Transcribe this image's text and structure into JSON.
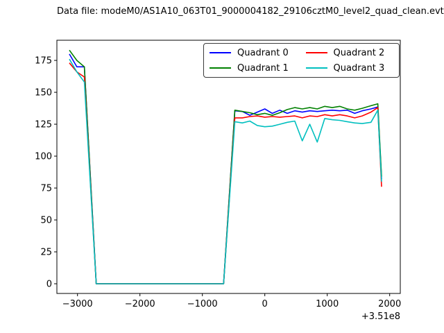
{
  "chart_data": {
    "type": "line",
    "title": "Data file: modeM0/AS1A10_063T01_9000004182_29106cztM0_level2_quad_clean.evt",
    "xlabel": "",
    "ylabel": "",
    "x_offset_label": "+3.51e8",
    "xlim": [
      -3330,
      2170
    ],
    "ylim": [
      -7.6,
      190.8
    ],
    "grid": false,
    "legend_position": "upper right",
    "xticks": {
      "values": [
        -3000,
        -2000,
        -1000,
        0,
        1000,
        2000
      ],
      "labels": [
        "−3000",
        "−2000",
        "−1000",
        "0",
        "1000",
        "2000"
      ]
    },
    "yticks": {
      "values": [
        0,
        25,
        50,
        75,
        100,
        125,
        150,
        175
      ],
      "labels": [
        "0",
        "25",
        "50",
        "75",
        "100",
        "125",
        "150",
        "175"
      ]
    },
    "legend": {
      "entries": [
        {
          "label": "Quadrant 0",
          "color": "#0000ff"
        },
        {
          "label": "Quadrant 1",
          "color": "#008000"
        },
        {
          "label": "Quadrant 2",
          "color": "#ff0000"
        },
        {
          "label": "Quadrant 3",
          "color": "#00bfbf"
        }
      ]
    },
    "series": [
      {
        "name": "Quadrant 0",
        "color": "#0000ff",
        "points": [
          [
            -3130,
            180
          ],
          [
            -3010,
            170
          ],
          [
            -2890,
            170
          ],
          [
            -2700,
            0
          ],
          [
            -660,
            0
          ],
          [
            -480,
            135.5
          ],
          [
            -360,
            135
          ],
          [
            -240,
            132
          ],
          [
            -120,
            134.5
          ],
          [
            0,
            137
          ],
          [
            120,
            133.5
          ],
          [
            240,
            136
          ],
          [
            360,
            133.5
          ],
          [
            480,
            135.5
          ],
          [
            600,
            134.5
          ],
          [
            720,
            135.5
          ],
          [
            840,
            135
          ],
          [
            960,
            135.5
          ],
          [
            1080,
            136
          ],
          [
            1200,
            135.5
          ],
          [
            1320,
            136
          ],
          [
            1440,
            133.5
          ],
          [
            1560,
            135.5
          ],
          [
            1700,
            137
          ],
          [
            1810,
            138.5
          ],
          [
            1870,
            82
          ]
        ]
      },
      {
        "name": "Quadrant 1",
        "color": "#008000",
        "points": [
          [
            -3130,
            183
          ],
          [
            -3010,
            175
          ],
          [
            -2890,
            170
          ],
          [
            -2700,
            0
          ],
          [
            -660,
            0
          ],
          [
            -480,
            136
          ],
          [
            -360,
            135
          ],
          [
            -240,
            134
          ],
          [
            -120,
            132.5
          ],
          [
            0,
            133.5
          ],
          [
            120,
            132
          ],
          [
            240,
            134
          ],
          [
            360,
            136.5
          ],
          [
            480,
            138
          ],
          [
            600,
            137
          ],
          [
            720,
            138
          ],
          [
            840,
            137
          ],
          [
            960,
            139
          ],
          [
            1080,
            138
          ],
          [
            1200,
            139
          ],
          [
            1320,
            137
          ],
          [
            1440,
            136
          ],
          [
            1560,
            137.5
          ],
          [
            1700,
            139.5
          ],
          [
            1810,
            141
          ],
          [
            1870,
            84
          ]
        ]
      },
      {
        "name": "Quadrant 2",
        "color": "#ff0000",
        "points": [
          [
            -3130,
            173
          ],
          [
            -3010,
            166
          ],
          [
            -2890,
            162
          ],
          [
            -2700,
            0
          ],
          [
            -660,
            0
          ],
          [
            -480,
            130
          ],
          [
            -360,
            130
          ],
          [
            -240,
            131
          ],
          [
            -120,
            131.5
          ],
          [
            0,
            130.5
          ],
          [
            120,
            131
          ],
          [
            240,
            130.5
          ],
          [
            360,
            131
          ],
          [
            480,
            131.5
          ],
          [
            600,
            130
          ],
          [
            720,
            131.5
          ],
          [
            840,
            131
          ],
          [
            960,
            132.5
          ],
          [
            1080,
            131.5
          ],
          [
            1200,
            132.5
          ],
          [
            1320,
            131.5
          ],
          [
            1440,
            130
          ],
          [
            1560,
            131.5
          ],
          [
            1700,
            134.5
          ],
          [
            1810,
            138
          ],
          [
            1870,
            76
          ]
        ]
      },
      {
        "name": "Quadrant 3",
        "color": "#00bfbf",
        "points": [
          [
            -3130,
            176
          ],
          [
            -3010,
            166
          ],
          [
            -2890,
            158
          ],
          [
            -2700,
            0
          ],
          [
            -660,
            0
          ],
          [
            -480,
            127
          ],
          [
            -360,
            126
          ],
          [
            -240,
            127.5
          ],
          [
            -120,
            124
          ],
          [
            0,
            123
          ],
          [
            120,
            123.5
          ],
          [
            240,
            125
          ],
          [
            360,
            126.5
          ],
          [
            480,
            127.5
          ],
          [
            600,
            112
          ],
          [
            720,
            125
          ],
          [
            840,
            111
          ],
          [
            960,
            129.5
          ],
          [
            1080,
            128.5
          ],
          [
            1200,
            128
          ],
          [
            1320,
            127
          ],
          [
            1440,
            126
          ],
          [
            1560,
            125.5
          ],
          [
            1700,
            126.5
          ],
          [
            1810,
            136
          ],
          [
            1870,
            80
          ]
        ]
      }
    ]
  }
}
